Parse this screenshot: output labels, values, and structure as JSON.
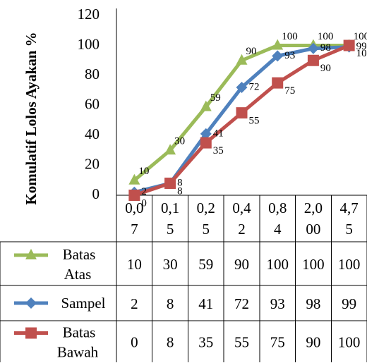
{
  "chart_data": {
    "type": "line",
    "ylabel": "Komulatif Lolos Ayakan %",
    "ylim": [
      0,
      120
    ],
    "yticks": [
      0,
      20,
      40,
      60,
      80,
      100,
      120
    ],
    "categories": [
      [
        "0,0",
        "7"
      ],
      [
        "0,1",
        "5"
      ],
      [
        "0,2",
        "5"
      ],
      [
        "0,4",
        "2"
      ],
      [
        "0,8",
        "4"
      ],
      [
        "2,0",
        "00"
      ],
      [
        "4,7",
        "5"
      ]
    ],
    "grid": false,
    "legend": "data-table-below",
    "series": [
      {
        "name": [
          "Batas",
          "Atas"
        ],
        "values": [
          10,
          30,
          59,
          90,
          100,
          100,
          100
        ],
        "color": "#9bbb59",
        "marker": "triangle"
      },
      {
        "name": [
          "Sampel"
        ],
        "values": [
          2,
          8,
          41,
          72,
          93,
          98,
          99
        ],
        "color": "#4f81bd",
        "marker": "diamond"
      },
      {
        "name": [
          "Batas",
          "Bawah"
        ],
        "values": [
          0,
          8,
          35,
          55,
          75,
          90,
          100
        ],
        "color": "#c0504d",
        "marker": "square"
      }
    ]
  }
}
